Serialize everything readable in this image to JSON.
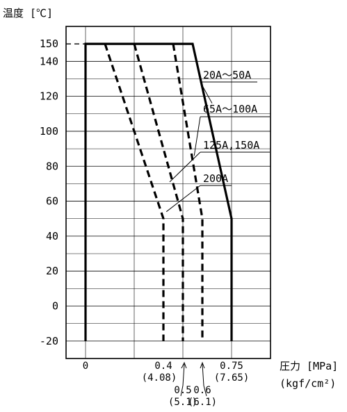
{
  "chart_data": {
    "type": "line",
    "ylabel": "温度 [℃]",
    "xlabel": "圧力 [MPa]",
    "xlabel_sub": "(kgf/cm²)",
    "xlim": [
      -0.1,
      0.95
    ],
    "ylim": [
      -30,
      160
    ],
    "x_ticks": [
      {
        "label": "0",
        "value": 0
      },
      {
        "label": "0.4",
        "value": 0.4
      },
      {
        "label": "0.75",
        "value": 0.75
      }
    ],
    "y_ticks": [
      {
        "label": "150",
        "value": 150
      },
      {
        "label": "140",
        "value": 140
      },
      {
        "label": "120",
        "value": 120
      },
      {
        "label": "100",
        "value": 100
      },
      {
        "label": "80",
        "value": 80
      },
      {
        "label": "60",
        "value": 60
      },
      {
        "label": "40",
        "value": 40
      },
      {
        "label": "20",
        "value": 20
      },
      {
        "label": "0",
        "value": 0
      },
      {
        "label": "-20",
        "value": -20
      }
    ],
    "x_annotations": [
      {
        "label": "(4.08)",
        "value": 0.4
      },
      {
        "label": "0.5",
        "value": 0.5
      },
      {
        "label": "(5.1)",
        "value": 0.5
      },
      {
        "label": "0.6",
        "value": 0.6
      },
      {
        "label": "(6.1)",
        "value": 0.6
      },
      {
        "label": "(7.65)",
        "value": 0.75
      }
    ],
    "series": [
      {
        "name": "20A～50A",
        "style": "solid",
        "points": [
          [
            0,
            -20
          ],
          [
            0,
            150
          ],
          [
            0.55,
            150
          ],
          [
            0.75,
            50
          ],
          [
            0.75,
            -20
          ]
        ]
      },
      {
        "name": "65A～100A",
        "style": "dashed",
        "points": [
          [
            0.45,
            150
          ],
          [
            0.6,
            50
          ],
          [
            0.6,
            -20
          ]
        ]
      },
      {
        "name": "125A,150A",
        "style": "dashed",
        "points": [
          [
            0.25,
            150
          ],
          [
            0.5,
            50
          ],
          [
            0.5,
            -20
          ]
        ]
      },
      {
        "name": "200A",
        "style": "dashed",
        "points": [
          [
            0.1,
            150
          ],
          [
            0.4,
            50
          ],
          [
            0.4,
            -20
          ]
        ]
      }
    ],
    "top_dashed_segment": [
      [
        -0.1,
        150
      ],
      [
        0,
        150
      ]
    ],
    "grid": true,
    "legend": "inline-labels"
  }
}
